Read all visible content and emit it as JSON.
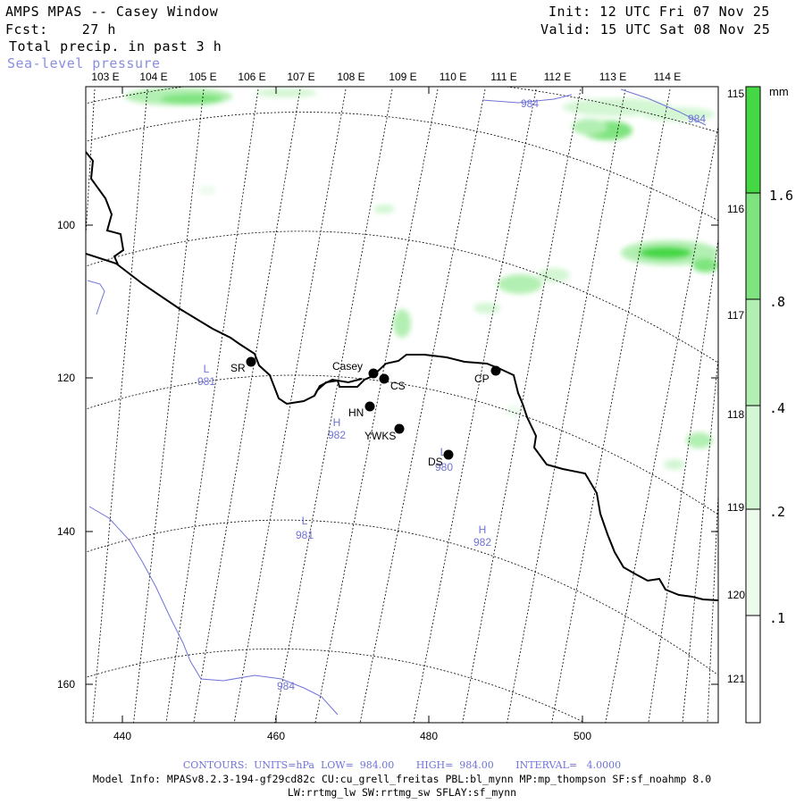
{
  "header": {
    "product": "AMPS MPAS -- Casey Window",
    "forecast_label": "Fcst:",
    "forecast_value": "27 h",
    "field_primary": "Total precip. in past 3 h",
    "field_secondary": "Sea-level pressure",
    "init": "Init: 12 UTC Fri 07 Nov 25",
    "valid": "Valid: 15 UTC Sat 08 Nov 25"
  },
  "map": {
    "top_longitudes": [
      "103 E",
      "104 E",
      "105 E",
      "106 E",
      "107 E",
      "108 E",
      "109 E",
      "110 E",
      "111 E",
      "112 E",
      "113 E",
      "114 E"
    ],
    "right_longitudes": [
      "115 E",
      "116 E",
      "117 E",
      "118 E",
      "119 E",
      "120 E",
      "121 E"
    ],
    "x_ticks": [
      "440",
      "460",
      "480",
      "500"
    ],
    "y_ticks": [
      "100",
      "120",
      "140",
      "160"
    ],
    "stations": [
      {
        "id": "SR",
        "label": "SR"
      },
      {
        "id": "casey",
        "label": "Casey"
      },
      {
        "id": "CS",
        "label": "CS"
      },
      {
        "id": "HN",
        "label": "HN"
      },
      {
        "id": "YWKS",
        "label": "YWKS"
      },
      {
        "id": "CP",
        "label": "CP"
      },
      {
        "id": "DS",
        "label": "DS"
      }
    ],
    "pressure_centers": [
      {
        "id": "L1",
        "symbol": "L",
        "value": "981"
      },
      {
        "id": "H1",
        "symbol": "H",
        "value": "982"
      },
      {
        "id": "L2",
        "symbol": "L",
        "value": "981"
      },
      {
        "id": "H2",
        "symbol": "H",
        "value": "982"
      },
      {
        "id": "DSv",
        "symbol": "L",
        "value": "980"
      }
    ],
    "isobar_labels": [
      "984",
      "984",
      "984"
    ]
  },
  "colorbar": {
    "unit": "mm",
    "levels": [
      ".1",
      ".2",
      ".4",
      ".8",
      "1.6"
    ],
    "colors": [
      "#ecfbec",
      "#d3f6d3",
      "#b2efb2",
      "#7fe47f",
      "#45d845"
    ]
  },
  "footer": {
    "contours": "CONTOURS:  UNITS=hPa  LOW=  984.00       HIGH=  984.00       INTERVAL=   4.0000",
    "model_info": "Model Info: MPASv8.2.3-194-gf29cd82c CU:cu_grell_freitas PBL:bl_mynn MP:mp_thompson SF:sf_noahmp 8.0",
    "model_info_2": "LW:rrtmg_lw SW:rrtmg_sw SFLAY:sf_mynn"
  }
}
